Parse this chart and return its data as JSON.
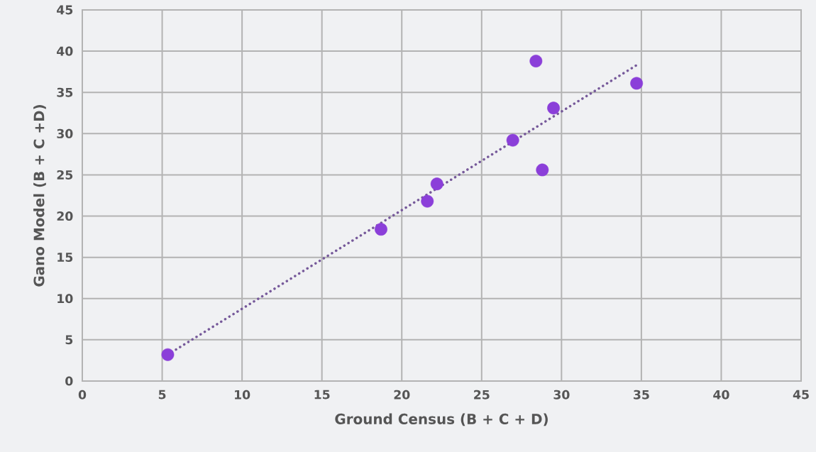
{
  "chart_data": {
    "type": "scatter",
    "xlabel": "Ground Census (B + C + D)",
    "ylabel": "Gano Model (B + C +D)",
    "xlim": [
      0,
      45
    ],
    "ylim": [
      0,
      45
    ],
    "xticks": [
      0,
      5,
      10,
      15,
      20,
      25,
      30,
      35,
      40,
      45
    ],
    "yticks": [
      0,
      5,
      10,
      15,
      20,
      25,
      30,
      35,
      40,
      45
    ],
    "grid": true,
    "series": [
      {
        "marker": "circle",
        "color": "#8b3fd9",
        "x": [
          5.35,
          18.7,
          21.6,
          22.2,
          26.95,
          28.4,
          28.8,
          29.5,
          34.7
        ],
        "values": [
          3.2,
          18.4,
          21.8,
          23.9,
          29.2,
          38.8,
          25.6,
          33.1,
          36.1
        ]
      },
      {
        "type": "line",
        "marker": "none",
        "line_style": "dotted",
        "color": "#76599a",
        "x": [
          5.35,
          34.7
        ],
        "values": [
          3.2,
          38.3
        ]
      }
    ]
  }
}
